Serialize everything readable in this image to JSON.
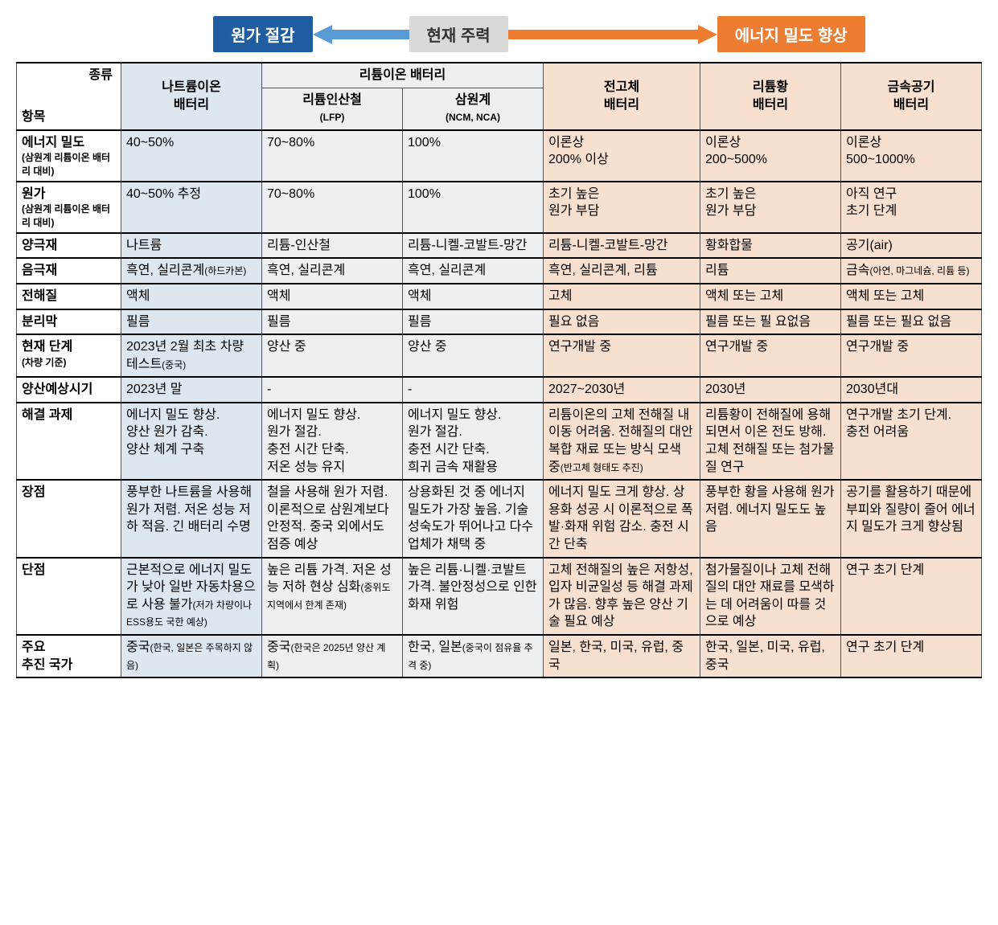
{
  "header": {
    "left_label": "원가 절감",
    "center_label": "현재 주력",
    "right_label": "에너지 밀도 향상",
    "arrow_left_color": "#5b9bd5",
    "arrow_right_color": "#ed7d31",
    "badge_blue_bg": "#1f5da0",
    "badge_gray_bg": "#d9d9d9",
    "badge_orange_bg": "#ed7d31"
  },
  "colors": {
    "sodium_bg": "#dde7f0",
    "lithium_bg": "#edf0f2",
    "next_bg": "#f7e0cf",
    "border": "#555555"
  },
  "table": {
    "corner_kind": "종류",
    "corner_item": "항목",
    "col_headers": {
      "sodium": "나트륨이온\n배터리",
      "lithium_group": "리튬이온 배터리",
      "lfp": "리튬인산철",
      "lfp_sub": "(LFP)",
      "ncm": "삼원계",
      "ncm_sub": "(NCM, NCA)",
      "solid": "전고체\n배터리",
      "lis": "리튬황\n배터리",
      "metal": "금속공기\n배터리"
    },
    "rows": [
      {
        "label": "에너지 밀도",
        "label_sub": "(삼원계 리튬이온 배터리 대비)",
        "cells": {
          "sodium": "40~50%",
          "lfp": "70~80%",
          "ncm": "100%",
          "solid": "이론상\n200% 이상",
          "lis": "이론상\n200~500%",
          "metal": "이론상\n500~1000%"
        }
      },
      {
        "label": "원가",
        "label_sub": "(삼원계 리튬이온 배터리 대비)",
        "cells": {
          "sodium": "40~50% 추정",
          "lfp": "70~80%",
          "ncm": "100%",
          "solid": "초기 높은\n원가 부담",
          "lis": "초기 높은\n원가 부담",
          "metal": "아직 연구\n초기 단계"
        }
      },
      {
        "label": "양극재",
        "cells": {
          "sodium": "나트륨",
          "lfp": "리튬-인산철",
          "ncm": "리튬-니켈-코발트-망간",
          "solid": "리튬-니켈-코발트-망간",
          "lis": "황화합물",
          "metal": "공기(air)"
        }
      },
      {
        "label": "음극재",
        "cells": {
          "sodium": "흑연, 실리콘계",
          "sodium_sub": "(하드카본)",
          "lfp": "흑연, 실리콘계",
          "ncm": "흑연, 실리콘계",
          "solid": "흑연, 실리콘계, 리튬",
          "lis": "리튬",
          "metal": "금속",
          "metal_sub": "(아연, 마그네슘, 리튬 등)"
        }
      },
      {
        "label": "전해질",
        "cells": {
          "sodium": "액체",
          "lfp": "액체",
          "ncm": "액체",
          "solid": "고체",
          "lis": "액체 또는 고체",
          "metal": "액체 또는 고체"
        }
      },
      {
        "label": "분리막",
        "cells": {
          "sodium": "필름",
          "lfp": "필름",
          "ncm": "필름",
          "solid": "필요 없음",
          "lis": "필름 또는 필 요없음",
          "metal": "필름 또는 필요 없음"
        }
      },
      {
        "label": "현재 단계",
        "label_sub": "(차량 기준)",
        "cells": {
          "sodium": "2023년 2월 최초 차량 테스트",
          "sodium_sub": "(중국)",
          "lfp": "양산 중",
          "ncm": "양산 중",
          "solid": "연구개발 중",
          "lis": "연구개발 중",
          "metal": "연구개발 중"
        }
      },
      {
        "label": "양산예상시기",
        "cells": {
          "sodium": "2023년 말",
          "lfp": "-",
          "ncm": "-",
          "solid": "2027~2030년",
          "lis": "2030년",
          "metal": "2030년대"
        }
      },
      {
        "label": "해결 과제",
        "cells": {
          "sodium": "에너지 밀도 향상.\n양산 원가 감축.\n양산 체계 구축",
          "lfp": "에너지 밀도 향상.\n원가 절감.\n충전 시간 단축.\n저온 성능 유지",
          "ncm": "에너지 밀도 향상.\n원가 절감.\n충전 시간 단축.\n희귀 금속 재활용",
          "solid": "리튬이온의 고체 전해질 내 이동 어려움. 전해질의 대안 복합 재료 또는 방식 모색 중",
          "solid_sub": "(반고체 형태도 추진)",
          "lis": "리튬황이 전해질에 용해되면서 이온 전도 방해. 고체 전해질 또는 첨가물질 연구",
          "metal": "연구개발 초기 단계.\n충전 어려움"
        }
      },
      {
        "label": "장점",
        "cells": {
          "sodium": "풍부한 나트륨을 사용해 원가 저렴. 저온 성능 저하 적음. 긴 배터리 수명",
          "lfp": "철을 사용해 원가 저렴. 이론적으로 삼원계보다 안정적. 중국 외에서도 점증 예상",
          "ncm": "상용화된 것 중 에너지 밀도가 가장 높음. 기술 성숙도가 뛰어나고 다수 업체가 채택 중",
          "solid": "에너지 밀도 크게 향상. 상용화 성공 시 이론적으로 폭발·화재 위험 감소. 충전 시간 단축",
          "lis": "풍부한 황을 사용해 원가 저렴. 에너지 밀도도 높음",
          "metal": "공기를 활용하기 때문에 부피와 질량이 줄어 에너지 밀도가 크게 향상됨"
        }
      },
      {
        "label": "단점",
        "cells": {
          "sodium": "근본적으로 에너지 밀도가 낮아 일반 자동차용으로 사용 불가",
          "sodium_sub": "(저가 차량이나 ESS용도 국한 예상)",
          "lfp": "높은 리튬 가격. 저온 성능 저하 현상 심화",
          "lfp_sub": "(중위도 지역에서 한계 존재)",
          "ncm": "높은 리튬·니켈·코발트 가격. 불안정성으로 인한 화재 위험",
          "solid": "고체 전해질의 높은 저항성, 입자 비균일성 등 해결 과제가 많음. 향후 높은 양산 기술 필요 예상",
          "lis": "첨가물질이나 고체 전해질의 대안 재료를 모색하는 데 어려움이 따를 것으로 예상",
          "metal": "연구 초기 단계"
        }
      },
      {
        "label": "주요\n추진 국가",
        "cells": {
          "sodium": "중국",
          "sodium_sub": "(한국, 일본은 주목하지 않음)",
          "lfp": "중국",
          "lfp_sub": "(한국은 2025년 양산 계획)",
          "ncm": "한국, 일본",
          "ncm_sub": "(중국이 점유율 추격 중)",
          "solid": "일본, 한국, 미국, 유럽, 중국",
          "lis": "한국, 일본, 미국, 유럽, 중국",
          "metal": "연구 초기 단계"
        }
      }
    ]
  }
}
